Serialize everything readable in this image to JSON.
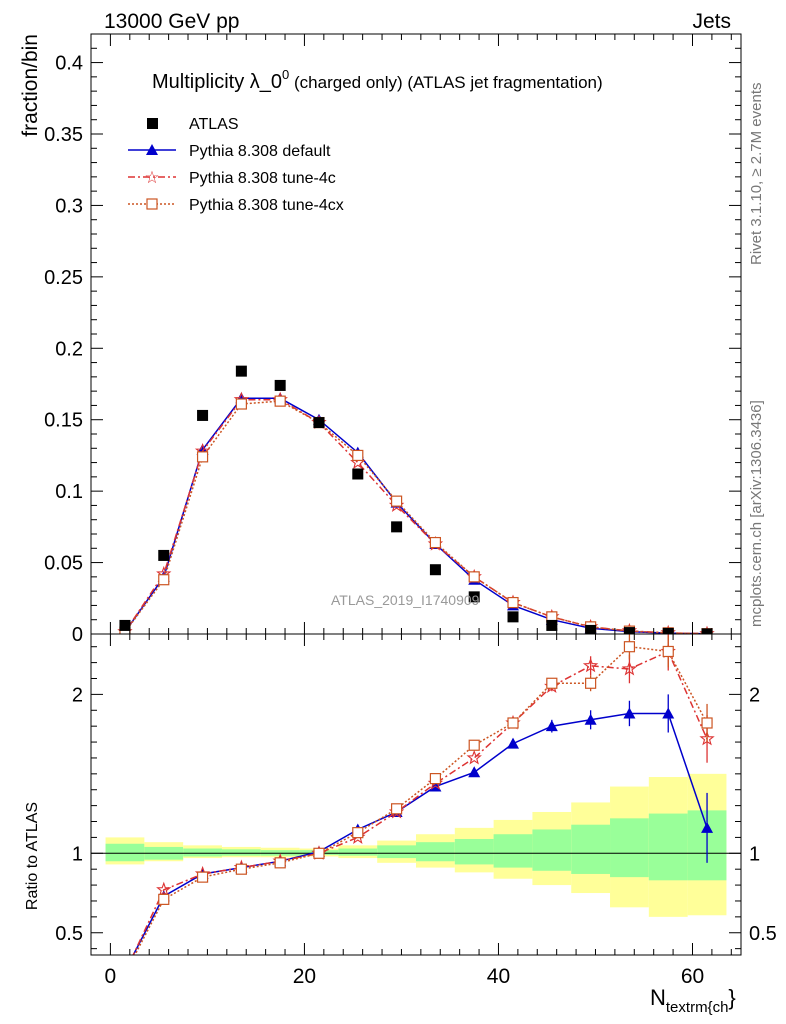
{
  "header": {
    "left": "13000 GeV pp",
    "right": "Jets"
  },
  "side_text": {
    "rivet": "Rivet 3.1.10, ≥ 2.7M events",
    "mcplots": "mcplots.cern.ch [arXiv:1306.3436]"
  },
  "watermark": "ATLAS_2019_I1740909",
  "colors": {
    "atlas": "#000000",
    "default": "#0000cc",
    "tune4c": "#dd3333",
    "tune4cx": "#cc5522",
    "band_inner": "#99ff99",
    "band_outer": "#ffff99"
  },
  "chart_data": [
    {
      "type": "scatter",
      "panel": "main",
      "title": "Multiplicity λ_0⁰ (charged only) (ATLAS jet fragmentation)",
      "title_main": "Multiplicity λ_0",
      "title_sup": "0",
      "title_tail": " (charged only) (ATLAS jet fragmentation)",
      "ylabel": "fraction/bin",
      "xlim": [
        -2,
        65
      ],
      "ylim": [
        0,
        0.42
      ],
      "yticks": [
        0,
        0.05,
        0.1,
        0.15,
        0.2,
        0.25,
        0.3,
        0.35,
        0.4
      ],
      "ytick_labels": [
        "0",
        "0.05",
        "0.1",
        "0.15",
        "0.2",
        "0.25",
        "0.3",
        "0.35",
        "0.4"
      ],
      "x": [
        1.5,
        5.5,
        9.5,
        13.5,
        17.5,
        21.5,
        25.5,
        29.5,
        33.5,
        37.5,
        41.5,
        45.5,
        49.5,
        53.5,
        57.5,
        61.5
      ],
      "series": [
        {
          "name": "ATLAS",
          "style": "data",
          "values": [
            0.006,
            0.055,
            0.153,
            0.184,
            0.174,
            0.148,
            0.112,
            0.075,
            0.045,
            0.026,
            0.012,
            0.006,
            0.0025,
            0.001,
            0.0004,
            0.0001
          ]
        },
        {
          "name": "Pythia 8.308 default",
          "style": "default",
          "values": [
            0.0015,
            0.04,
            0.129,
            0.165,
            0.165,
            0.15,
            0.127,
            0.092,
            0.063,
            0.038,
            0.02,
            0.01,
            0.004,
            0.0017,
            0.0006,
            0.0002
          ]
        },
        {
          "name": "Pythia 8.308 tune-4c",
          "style": "tune4c",
          "values": [
            0.0015,
            0.042,
            0.128,
            0.164,
            0.164,
            0.148,
            0.12,
            0.09,
            0.063,
            0.04,
            0.022,
            0.012,
            0.005,
            0.0022,
            0.0008,
            0.0002
          ]
        },
        {
          "name": "Pythia 8.308 tune-4cx",
          "style": "tune4cx",
          "values": [
            0.0013,
            0.038,
            0.124,
            0.161,
            0.163,
            0.148,
            0.125,
            0.093,
            0.064,
            0.04,
            0.022,
            0.012,
            0.005,
            0.002,
            0.0008,
            0.0002
          ]
        }
      ]
    },
    {
      "type": "line",
      "panel": "ratio",
      "ylabel": "Ratio to ATLAS",
      "xlabel": "N",
      "xlabel_sub": "textrm{ch",
      "xlabel_tail": "}",
      "xlim": [
        -2,
        65
      ],
      "ylim": [
        0.36,
        2.38
      ],
      "xticks": [
        0,
        20,
        40,
        60
      ],
      "xtick_labels": [
        "0",
        "20",
        "40",
        "60"
      ],
      "yticks": [
        0.5,
        1,
        2
      ],
      "ytick_labels": [
        "0.5",
        "1",
        "2"
      ],
      "x": [
        1.5,
        5.5,
        9.5,
        13.5,
        17.5,
        21.5,
        25.5,
        29.5,
        33.5,
        37.5,
        41.5,
        45.5,
        49.5,
        53.5,
        57.5,
        61.5
      ],
      "bins": [
        [
          -0.5,
          3.5
        ],
        [
          3.5,
          7.5
        ],
        [
          7.5,
          11.5
        ],
        [
          11.5,
          15.5
        ],
        [
          15.5,
          19.5
        ],
        [
          19.5,
          23.5
        ],
        [
          23.5,
          27.5
        ],
        [
          27.5,
          31.5
        ],
        [
          31.5,
          35.5
        ],
        [
          35.5,
          39.5
        ],
        [
          39.5,
          43.5
        ],
        [
          43.5,
          47.5
        ],
        [
          47.5,
          51.5
        ],
        [
          51.5,
          55.5
        ],
        [
          55.5,
          59.5
        ],
        [
          59.5,
          63.5
        ]
      ],
      "band_inner": [
        [
          0.95,
          1.06
        ],
        [
          0.96,
          1.04
        ],
        [
          0.98,
          1.03
        ],
        [
          0.985,
          1.025
        ],
        [
          0.985,
          1.02
        ],
        [
          0.99,
          1.02
        ],
        [
          0.985,
          1.03
        ],
        [
          0.97,
          1.05
        ],
        [
          0.95,
          1.07
        ],
        [
          0.93,
          1.09
        ],
        [
          0.91,
          1.12
        ],
        [
          0.89,
          1.15
        ],
        [
          0.87,
          1.18
        ],
        [
          0.85,
          1.22
        ],
        [
          0.83,
          1.25
        ],
        [
          0.83,
          1.27
        ]
      ],
      "band_outer": [
        [
          0.93,
          1.1
        ],
        [
          0.95,
          1.07
        ],
        [
          0.97,
          1.05
        ],
        [
          0.975,
          1.04
        ],
        [
          0.975,
          1.035
        ],
        [
          0.98,
          1.03
        ],
        [
          0.97,
          1.05
        ],
        [
          0.94,
          1.08
        ],
        [
          0.91,
          1.12
        ],
        [
          0.88,
          1.16
        ],
        [
          0.84,
          1.21
        ],
        [
          0.8,
          1.26
        ],
        [
          0.75,
          1.32
        ],
        [
          0.66,
          1.42
        ],
        [
          0.6,
          1.48
        ],
        [
          0.61,
          1.5
        ]
      ],
      "series": [
        {
          "name": "Pythia 8.308 default",
          "style": "default",
          "values": [
            0.26,
            0.73,
            0.87,
            0.91,
            0.95,
            1.01,
            1.15,
            1.26,
            1.42,
            1.51,
            1.69,
            1.8,
            1.84,
            1.88,
            1.88,
            1.16
          ],
          "err": [
            0,
            0,
            0,
            0,
            0,
            0,
            0,
            0,
            0,
            0,
            0.03,
            0.04,
            0.06,
            0.08,
            0.12,
            0.22
          ]
        },
        {
          "name": "Pythia 8.308 tune-4c",
          "style": "tune4c",
          "values": [
            0.25,
            0.77,
            0.87,
            0.91,
            0.95,
            1.0,
            1.1,
            1.26,
            1.44,
            1.6,
            1.82,
            2.05,
            2.18,
            2.16,
            2.27,
            1.72
          ],
          "err": [
            0,
            0,
            0,
            0,
            0,
            0,
            0,
            0,
            0,
            0,
            0.02,
            0.03,
            0.06,
            0.09,
            0.12,
            0.15
          ]
        },
        {
          "name": "Pythia 8.308 tune-4cx",
          "style": "tune4cx",
          "values": [
            0.24,
            0.71,
            0.85,
            0.9,
            0.94,
            1.0,
            1.13,
            1.28,
            1.47,
            1.68,
            1.82,
            2.07,
            2.07,
            2.3,
            2.27,
            1.82
          ],
          "err": [
            0,
            0,
            0,
            0,
            0,
            0,
            0,
            0,
            0,
            0,
            0.02,
            0.03,
            0.05,
            0.08,
            0.1,
            0.12
          ]
        }
      ]
    }
  ]
}
